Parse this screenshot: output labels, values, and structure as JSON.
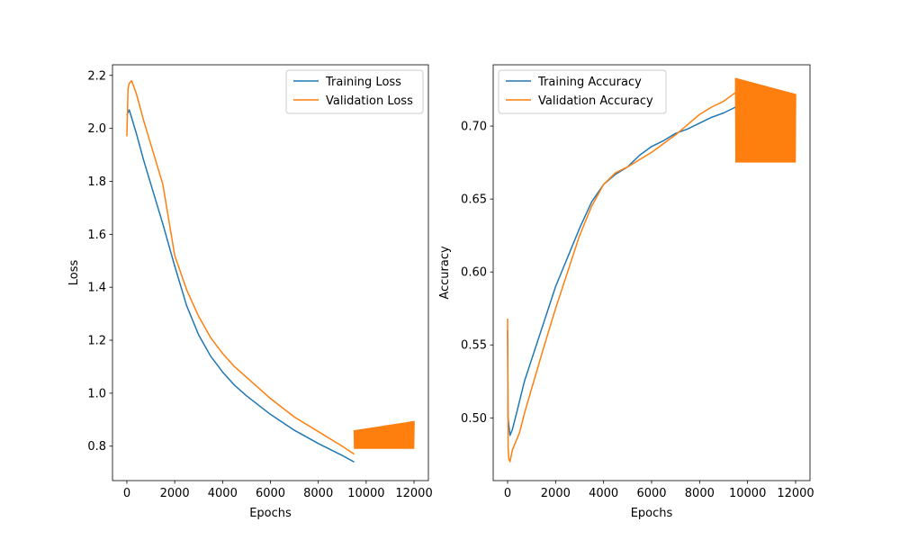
{
  "colors": {
    "training": "#1f77b4",
    "validation": "#ff7f0e"
  },
  "chart_data": [
    {
      "type": "line",
      "xlabel": "Epochs",
      "ylabel": "Loss",
      "xlim": [
        -600,
        12600
      ],
      "ylim": [
        0.67,
        2.24
      ],
      "xticks": [
        0,
        2000,
        4000,
        6000,
        8000,
        10000,
        12000
      ],
      "yticks": [
        0.8,
        1.0,
        1.2,
        1.4,
        1.6,
        1.8,
        2.0,
        2.2
      ],
      "ytick_labels": [
        "0.8",
        "1.0",
        "1.2",
        "1.4",
        "1.6",
        "1.8",
        "2.0",
        "2.2"
      ],
      "legend_position": "upper right",
      "series": [
        {
          "name": "Training Loss",
          "color": "#1f77b4",
          "x": [
            0,
            100,
            200,
            400,
            700,
            1000,
            1500,
            2000,
            2500,
            3000,
            3500,
            4000,
            4500,
            5000,
            6000,
            7000,
            8000,
            9000,
            9500
          ],
          "y": [
            2.05,
            2.07,
            2.04,
            1.98,
            1.88,
            1.79,
            1.64,
            1.48,
            1.33,
            1.22,
            1.14,
            1.08,
            1.03,
            0.99,
            0.92,
            0.86,
            0.81,
            0.765,
            0.74
          ]
        },
        {
          "name": "Validation Loss",
          "color": "#ff7f0e",
          "x": [
            0,
            50,
            100,
            200,
            400,
            700,
            1000,
            1500,
            2000,
            2500,
            3000,
            3500,
            4000,
            4500,
            5000,
            6000,
            7000,
            8000,
            9000,
            9500
          ],
          "y": [
            1.97,
            2.15,
            2.17,
            2.18,
            2.13,
            2.03,
            1.94,
            1.79,
            1.52,
            1.39,
            1.29,
            1.21,
            1.15,
            1.1,
            1.06,
            0.98,
            0.91,
            0.855,
            0.8,
            0.77
          ],
          "oscillation": {
            "x_start": 9500,
            "x_end": 12000,
            "low": 0.79,
            "high_start": 0.86,
            "high_end": 0.895
          }
        }
      ]
    },
    {
      "type": "line",
      "xlabel": "Epochs",
      "ylabel": "Accuracy",
      "xlim": [
        -600,
        12600
      ],
      "ylim": [
        0.457,
        0.742
      ],
      "xticks": [
        0,
        2000,
        4000,
        6000,
        8000,
        10000,
        12000
      ],
      "yticks": [
        0.5,
        0.55,
        0.6,
        0.65,
        0.7
      ],
      "ytick_labels": [
        "0.50",
        "0.55",
        "0.60",
        "0.65",
        "0.70"
      ],
      "legend_position": "upper left",
      "series": [
        {
          "name": "Training Accuracy",
          "color": "#1f77b4",
          "x": [
            0,
            20,
            50,
            100,
            200,
            400,
            700,
            1000,
            1500,
            2000,
            2500,
            3000,
            3500,
            4000,
            4500,
            5000,
            5500,
            6000,
            6500,
            7000,
            7500,
            8000,
            8500,
            9000,
            9500
          ],
          "y": [
            0.56,
            0.5,
            0.495,
            0.488,
            0.492,
            0.505,
            0.525,
            0.54,
            0.565,
            0.59,
            0.61,
            0.63,
            0.648,
            0.66,
            0.667,
            0.672,
            0.68,
            0.686,
            0.69,
            0.695,
            0.698,
            0.702,
            0.706,
            0.709,
            0.713
          ]
        },
        {
          "name": "Validation Accuracy",
          "color": "#ff7f0e",
          "x": [
            0,
            20,
            50,
            100,
            200,
            300,
            500,
            700,
            1000,
            1500,
            2000,
            2500,
            3000,
            3500,
            4000,
            4500,
            5000,
            5500,
            6000,
            6500,
            7000,
            7500,
            8000,
            8500,
            9000,
            9500
          ],
          "y": [
            0.568,
            0.48,
            0.472,
            0.47,
            0.478,
            0.482,
            0.49,
            0.503,
            0.52,
            0.548,
            0.575,
            0.6,
            0.625,
            0.645,
            0.66,
            0.668,
            0.672,
            0.677,
            0.682,
            0.688,
            0.694,
            0.701,
            0.708,
            0.713,
            0.717,
            0.723
          ],
          "oscillation": {
            "x_start": 9500,
            "x_end": 12000,
            "low": 0.675,
            "high_start": 0.733,
            "high_end": 0.722
          }
        }
      ]
    }
  ]
}
